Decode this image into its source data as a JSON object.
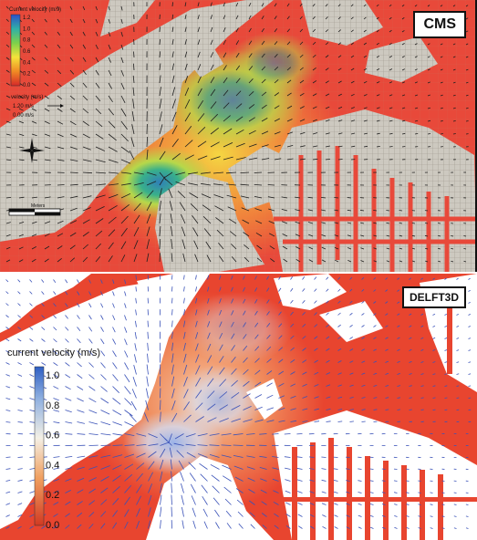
{
  "panels": {
    "cms": {
      "label": "CMS",
      "legend": {
        "title": "Current velocity (m/s)",
        "ticks": [
          "1.2",
          "1.0",
          "0.8",
          "0.6",
          "0.4",
          "0.2",
          "0.0"
        ],
        "velocity_title": "velocity (m/s)",
        "velocity_ref": "1.20 m/s",
        "velocity_min": "0.00 m/s",
        "scale_label": "Meters"
      },
      "colors": {
        "low": "#e8493a",
        "mid": "#f5c542",
        "high": "#3f7fd6",
        "land": "#cdc9c0"
      }
    },
    "delft": {
      "label": "DELFT3D",
      "legend": {
        "title": "current velocity (m/s)",
        "ticks": [
          "1.0",
          "0.8",
          "0.6",
          "0.4",
          "0.2",
          "0.0"
        ]
      },
      "colors": {
        "low": "#e8452f",
        "mid": "#f3b27c",
        "high": "#3458c8",
        "land": "#ffffff"
      }
    }
  }
}
